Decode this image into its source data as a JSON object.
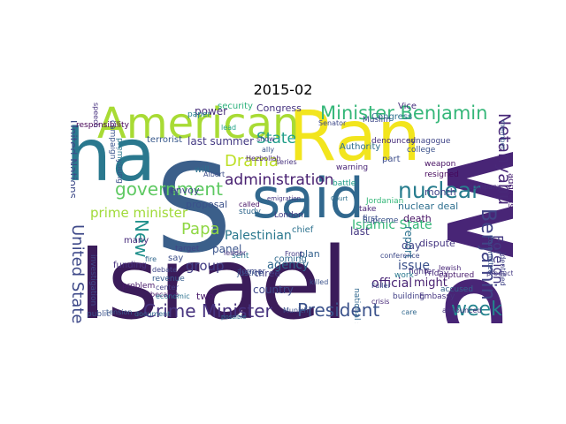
{
  "figure": {
    "title": "2015-02"
  },
  "wordcloud": {
    "words": [
      {
        "text": "Israel",
        "color": "#3b1c5a"
      },
      {
        "text": "S",
        "color": "#3b5f8a"
      },
      {
        "text": "Ran",
        "color": "#f2e51d"
      },
      {
        "text": "said",
        "color": "#31688e"
      },
      {
        "text": "wa",
        "color": "#482576"
      },
      {
        "text": "ha",
        "color": "#2a788e"
      },
      {
        "text": "American",
        "color": "#a8db34"
      },
      {
        "text": "Minister Benjamin",
        "color": "#35b779"
      },
      {
        "text": "Crime Minister",
        "color": "#46327e"
      },
      {
        "text": "President",
        "color": "#3b528b"
      },
      {
        "text": "Netanyahu",
        "color": "#482878"
      },
      {
        "text": "Benjamin",
        "color": "#414487"
      },
      {
        "text": "week",
        "color": "#25848e"
      },
      {
        "text": "nuclear",
        "color": "#287d8e"
      },
      {
        "text": "government",
        "color": "#5ec962"
      },
      {
        "text": "administration",
        "color": "#482071"
      },
      {
        "text": "State",
        "color": "#1f9e89"
      },
      {
        "text": "Papa",
        "color": "#8fd744"
      },
      {
        "text": "New",
        "color": "#21918c"
      },
      {
        "text": "United States",
        "color": "#3e4989"
      },
      {
        "text": "prime minister",
        "color": "#a0da39"
      },
      {
        "text": "Drama",
        "color": "#bddf26"
      },
      {
        "text": "Palestinian",
        "color": "#2a788e"
      },
      {
        "text": "Islamic State",
        "color": "#35b779"
      },
      {
        "text": "group",
        "color": "#433e85"
      },
      {
        "text": "United Nations",
        "color": "#3e4a89"
      },
      {
        "text": "Foreign",
        "color": "#443983"
      },
      {
        "text": "official",
        "color": "#482475"
      },
      {
        "text": "issue",
        "color": "#3b528b"
      },
      {
        "text": "report",
        "color": "#2c728e"
      },
      {
        "text": "agency",
        "color": "#31688e"
      },
      {
        "text": "country",
        "color": "#3e4989"
      },
      {
        "text": "Congress",
        "color": "#46337f"
      },
      {
        "text": "power",
        "color": "#472c7a"
      },
      {
        "text": "security",
        "color": "#2db27d"
      },
      {
        "text": "last",
        "color": "#453882"
      },
      {
        "text": "three",
        "color": "#423f85"
      },
      {
        "text": "panel",
        "color": "#3a548c"
      },
      {
        "text": "day",
        "color": "#404688"
      },
      {
        "text": "dispute",
        "color": "#453581"
      },
      {
        "text": "month",
        "color": "#414287"
      },
      {
        "text": "nuclear deal",
        "color": "#2e6f8e"
      },
      {
        "text": "might",
        "color": "#481f70"
      },
      {
        "text": "last summer",
        "color": "#443a83"
      },
      {
        "text": "terrorist",
        "color": "#38598c"
      },
      {
        "text": "many",
        "color": "#472a7a"
      },
      {
        "text": "say",
        "color": "#3d4e8a"
      },
      {
        "text": "plan",
        "color": "#34618d"
      },
      {
        "text": "coming",
        "color": "#306a8e"
      },
      {
        "text": "death",
        "color": "#471365"
      },
      {
        "text": "two",
        "color": "#48186a"
      },
      {
        "text": "justice",
        "color": "#39568c"
      },
      {
        "text": "chief",
        "color": "#2c718e"
      },
      {
        "text": "funding",
        "color": "#46307e"
      },
      {
        "text": "envoy",
        "color": "#3f4788"
      },
      {
        "text": "proposal",
        "color": "#3b518b"
      },
      {
        "text": "accused",
        "color": "#33638d"
      },
      {
        "text": "address",
        "color": "#482173"
      },
      {
        "text": "captured",
        "color": "#481b6d"
      },
      {
        "text": "building",
        "color": "#424086"
      },
      {
        "text": "fighter",
        "color": "#46337f"
      },
      {
        "text": "public",
        "color": "#3b518b"
      },
      {
        "text": "problem",
        "color": "#48186a"
      },
      {
        "text": "revenue",
        "color": "#365c8d"
      },
      {
        "text": "investigation",
        "color": "#3f4889"
      },
      {
        "text": "campaign",
        "color": "#3a548c"
      },
      {
        "text": "Congress",
        "color": "#2d708e"
      },
      {
        "text": "resigned",
        "color": "#46085c"
      },
      {
        "text": "weapon",
        "color": "#471063"
      },
      {
        "text": "college",
        "color": "#3b528b"
      },
      {
        "text": "Authority",
        "color": "#2e6e8e"
      },
      {
        "text": "part",
        "color": "#3d4d8a"
      },
      {
        "text": "Vice",
        "color": "#472f7d"
      },
      {
        "text": "responsibility",
        "color": "#440154"
      },
      {
        "text": "target",
        "color": "#414487"
      },
      {
        "text": "former",
        "color": "#3e4989"
      },
      {
        "text": "study",
        "color": "#31688e"
      },
      {
        "text": "London",
        "color": "#433d84"
      },
      {
        "text": "take",
        "color": "#482677"
      },
      {
        "text": "first",
        "color": "#3d4e8a"
      },
      {
        "text": "work",
        "color": "#2a788e"
      },
      {
        "text": "Embassy",
        "color": "#46337f"
      },
      {
        "text": "Friday",
        "color": "#482979"
      },
      {
        "text": "battle",
        "color": "#1f9e89"
      },
      {
        "text": "warning",
        "color": "#482475"
      },
      {
        "text": "Supreme",
        "color": "#3b528b"
      },
      {
        "text": "denounced",
        "color": "#472d7b"
      },
      {
        "text": "synagogue",
        "color": "#404688"
      },
      {
        "text": "Muslim",
        "color": "#3e4989"
      },
      {
        "text": "paper",
        "color": "#26828e"
      },
      {
        "text": "lead",
        "color": "#20a386"
      },
      {
        "text": "became",
        "color": "#48196b"
      },
      {
        "text": "crisis",
        "color": "#472878"
      },
      {
        "text": "Fuller",
        "color": "#3c4f8a"
      },
      {
        "text": "Front",
        "color": "#443b84"
      },
      {
        "text": "Munich",
        "color": "#3b518b"
      },
      {
        "text": "national security",
        "color": "#31688e"
      },
      {
        "text": "economic",
        "color": "#2c718e"
      },
      {
        "text": "center",
        "color": "#424186"
      },
      {
        "text": "tension",
        "color": "#38598c"
      },
      {
        "text": "will",
        "color": "#2d708e"
      },
      {
        "text": "Albert",
        "color": "#3d4e8a"
      },
      {
        "text": "called",
        "color": "#481467"
      },
      {
        "text": "speech",
        "color": "#46307e"
      },
      {
        "text": "young",
        "color": "#3b528b"
      },
      {
        "text": "premier",
        "color": "#2a788e"
      },
      {
        "text": "fire",
        "color": "#31688e"
      },
      {
        "text": "Senator",
        "color": "#3e4989"
      },
      {
        "text": "show",
        "color": "#433e85"
      },
      {
        "text": "Hezbollah",
        "color": "#482475"
      },
      {
        "text": "series",
        "color": "#46327e"
      },
      {
        "text": "ally",
        "color": "#3b528b"
      },
      {
        "text": "Court",
        "color": "#2d708e"
      },
      {
        "text": "emigration",
        "color": "#443983"
      },
      {
        "text": "document",
        "color": "#31688e"
      },
      {
        "text": "possible",
        "color": "#2c728e"
      },
      {
        "text": "debate",
        "color": "#404688"
      },
      {
        "text": "Committee",
        "color": "#3b528b"
      },
      {
        "text": "identified",
        "color": "#414487"
      },
      {
        "text": "announced",
        "color": "#46327e"
      },
      {
        "text": "member",
        "color": "#38598c"
      },
      {
        "text": "company",
        "color": "#472f7d"
      },
      {
        "text": "production",
        "color": "#443a83"
      },
      {
        "text": "conference",
        "color": "#3e4a89"
      },
      {
        "text": "Jordanian",
        "color": "#35b779"
      },
      {
        "text": "care",
        "color": "#31688e"
      },
      {
        "text": "sent",
        "color": "#2a788e"
      },
      {
        "text": "killed",
        "color": "#3b528b"
      },
      {
        "text": "Jewish",
        "color": "#482677"
      },
      {
        "text": "leader",
        "color": "#46337f"
      }
    ]
  }
}
